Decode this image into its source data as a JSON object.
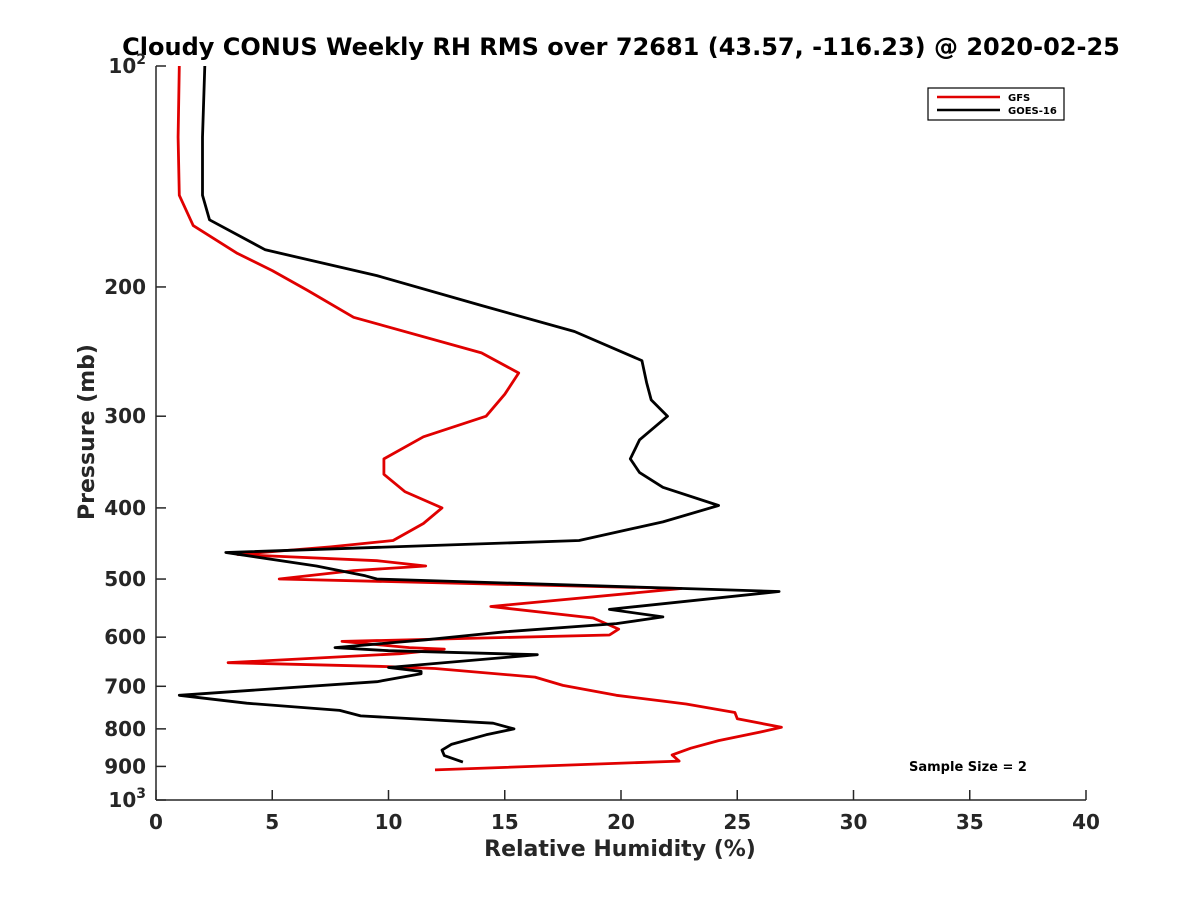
{
  "chart_data": {
    "type": "line",
    "title": "Cloudy CONUS Weekly RH RMS over 72681 (43.57, -116.23) @ 2020-02-25",
    "xlabel": "Relative Humidity (%)",
    "ylabel": "Pressure (mb)",
    "xlim": [
      0,
      40
    ],
    "ylim": [
      100,
      1000
    ],
    "y_scale": "log",
    "y_reversed": true,
    "grid": false,
    "x_ticks": [
      "0",
      "5",
      "10",
      "15",
      "20",
      "25",
      "30",
      "35",
      "40"
    ],
    "x_tick_values": [
      0,
      5,
      10,
      15,
      20,
      25,
      30,
      35,
      40
    ],
    "y_ticks": [
      {
        "value": 100,
        "base": "10",
        "exp": "2"
      },
      {
        "value": 200,
        "label": "200"
      },
      {
        "value": 300,
        "label": "300"
      },
      {
        "value": 400,
        "label": "400"
      },
      {
        "value": 500,
        "label": "500"
      },
      {
        "value": 600,
        "label": "600"
      },
      {
        "value": 700,
        "label": "700"
      },
      {
        "value": 800,
        "label": "800"
      },
      {
        "value": 900,
        "label": "900"
      },
      {
        "value": 1000,
        "base": "10",
        "exp": "3"
      }
    ],
    "legend_position": "top-right",
    "annotation": "Sample Size = 2",
    "series": [
      {
        "name": "GFS",
        "color": "#e00000",
        "points": [
          [
            1.0,
            100
          ],
          [
            0.95,
            125
          ],
          [
            1.0,
            150
          ],
          [
            1.6,
            165
          ],
          [
            3.5,
            180
          ],
          [
            5.0,
            190
          ],
          [
            6.5,
            202
          ],
          [
            8.5,
            220
          ],
          [
            14.0,
            246
          ],
          [
            15.6,
            262
          ],
          [
            15.0,
            280
          ],
          [
            14.2,
            300
          ],
          [
            11.5,
            320
          ],
          [
            9.8,
            343
          ],
          [
            9.8,
            360
          ],
          [
            10.7,
            380
          ],
          [
            12.3,
            400
          ],
          [
            11.5,
            420
          ],
          [
            10.2,
            443
          ],
          [
            7.5,
            452
          ],
          [
            3.5,
            463
          ],
          [
            9.5,
            472
          ],
          [
            11.6,
            480
          ],
          [
            8.5,
            487
          ],
          [
            5.3,
            500
          ],
          [
            22.6,
            515
          ],
          [
            14.4,
            545
          ],
          [
            18.8,
            565
          ],
          [
            19.9,
            585
          ],
          [
            19.5,
            596
          ],
          [
            8.0,
            608
          ],
          [
            10.9,
            620
          ],
          [
            12.4,
            623
          ],
          [
            10.5,
            632
          ],
          [
            3.1,
            650
          ],
          [
            10.0,
            658
          ],
          [
            12.0,
            662
          ],
          [
            16.3,
            680
          ],
          [
            17.5,
            698
          ],
          [
            19.8,
            720
          ],
          [
            22.8,
            740
          ],
          [
            24.9,
            760
          ],
          [
            25.0,
            775
          ],
          [
            26.9,
            796
          ],
          [
            26.0,
            808
          ],
          [
            24.2,
            830
          ],
          [
            23.0,
            850
          ],
          [
            22.2,
            868
          ],
          [
            22.5,
            885
          ],
          [
            12.0,
            910
          ]
        ]
      },
      {
        "name": "GOES-16",
        "color": "#000000",
        "points": [
          [
            2.1,
            100
          ],
          [
            2.0,
            125
          ],
          [
            2.0,
            150
          ],
          [
            2.3,
            162
          ],
          [
            4.7,
            178
          ],
          [
            9.5,
            193
          ],
          [
            14.0,
            212
          ],
          [
            18.0,
            230
          ],
          [
            20.9,
            252
          ],
          [
            21.1,
            270
          ],
          [
            21.3,
            285
          ],
          [
            22.0,
            300
          ],
          [
            20.8,
            323
          ],
          [
            20.4,
            343
          ],
          [
            20.8,
            358
          ],
          [
            21.8,
            375
          ],
          [
            24.2,
            397
          ],
          [
            21.8,
            418
          ],
          [
            18.2,
            443
          ],
          [
            3.0,
            460
          ],
          [
            6.9,
            480
          ],
          [
            9.0,
            495
          ],
          [
            9.5,
            500
          ],
          [
            26.8,
            520
          ],
          [
            19.5,
            550
          ],
          [
            21.8,
            563
          ],
          [
            19.8,
            575
          ],
          [
            15.0,
            590
          ],
          [
            11.6,
            605
          ],
          [
            7.7,
            620
          ],
          [
            10.0,
            626
          ],
          [
            16.4,
            634
          ],
          [
            10.0,
            660
          ],
          [
            11.4,
            668
          ],
          [
            11.4,
            673
          ],
          [
            9.5,
            690
          ],
          [
            1.0,
            720
          ],
          [
            3.9,
            738
          ],
          [
            7.9,
            755
          ],
          [
            8.8,
            768
          ],
          [
            14.5,
            786
          ],
          [
            15.4,
            800
          ],
          [
            14.2,
            815
          ],
          [
            12.7,
            840
          ],
          [
            12.3,
            855
          ],
          [
            12.4,
            870
          ],
          [
            13.2,
            888
          ]
        ]
      }
    ]
  }
}
